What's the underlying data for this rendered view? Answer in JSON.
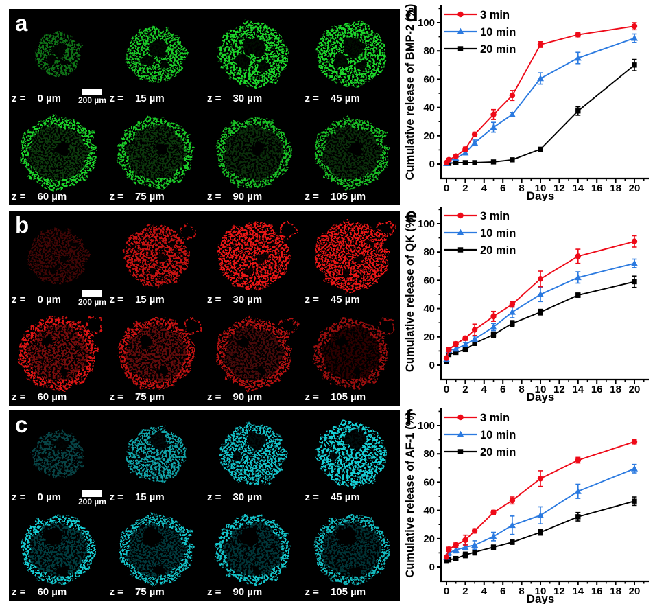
{
  "microscopy": {
    "scalebar_label": "200 µm",
    "z_prefix": "z =",
    "panels": [
      {
        "letter": "a",
        "stain_color": "#1cd42a",
        "z_values": [
          "0 µm",
          "15 µm",
          "30 µm",
          "45 µm",
          "60 µm",
          "75 µm",
          "90 µm",
          "105 µm"
        ]
      },
      {
        "letter": "b",
        "stain_color": "#e81414",
        "z_values": [
          "0 µm",
          "15 µm",
          "30 µm",
          "45 µm",
          "60 µm",
          "75 µm",
          "90 µm",
          "105 µm"
        ]
      },
      {
        "letter": "c",
        "stain_color": "#17ccd2",
        "z_values": [
          "0 µm",
          "15 µm",
          "30 µm",
          "45 µm",
          "60 µm",
          "75 µm",
          "90 µm",
          "105 µm"
        ]
      }
    ]
  },
  "chart_data": [
    {
      "type": "line",
      "panel_letter": "d",
      "title": "",
      "xlabel": "Days",
      "ylabel": "Cumulative release of BMP-2 (%)",
      "x": [
        0,
        0.25,
        1,
        2,
        3,
        5,
        7,
        10,
        14,
        20
      ],
      "xticks": [
        0,
        2,
        4,
        6,
        8,
        10,
        12,
        14,
        16,
        18,
        20
      ],
      "yticks": [
        0,
        20,
        40,
        60,
        80,
        100
      ],
      "xlim": [
        -0.6,
        21.5
      ],
      "ylim": [
        -10,
        112
      ],
      "grid": false,
      "legend_position": "top-left",
      "series": [
        {
          "name": "3 min",
          "color": "#ee0a18",
          "marker": "circle",
          "values": [
            1,
            3,
            5.5,
            10.5,
            21,
            35,
            48.5,
            84.5,
            91.5,
            97.5
          ],
          "errors": [
            1,
            1,
            1,
            1.5,
            1.5,
            3.5,
            3.5,
            2,
            1.5,
            2.5
          ]
        },
        {
          "name": "10 min",
          "color": "#2b7ae0",
          "marker": "triangle",
          "values": [
            0.5,
            2.5,
            4,
            8,
            15,
            26,
            35,
            60.5,
            75,
            89
          ],
          "errors": [
            0.5,
            1,
            1.5,
            1.5,
            2,
            3.5,
            1.5,
            4,
            4,
            3
          ]
        },
        {
          "name": "20 min",
          "color": "#000000",
          "marker": "square",
          "values": [
            0.5,
            0.5,
            1,
            1,
            1,
            1.5,
            3,
            10.5,
            37.5,
            70
          ],
          "errors": [
            0.3,
            0.3,
            0.3,
            0.3,
            0.3,
            0.5,
            0.5,
            1,
            3,
            4
          ]
        }
      ]
    },
    {
      "type": "line",
      "panel_letter": "e",
      "title": "",
      "xlabel": "Days",
      "ylabel": "Cumulative release of QK (%)",
      "x": [
        0,
        0.25,
        1,
        2,
        3,
        5,
        7,
        10,
        14,
        20
      ],
      "xticks": [
        0,
        2,
        4,
        6,
        8,
        10,
        12,
        14,
        16,
        18,
        20
      ],
      "yticks": [
        0,
        20,
        40,
        60,
        80,
        100
      ],
      "xlim": [
        -0.6,
        21.5
      ],
      "ylim": [
        -10,
        112
      ],
      "grid": false,
      "legend_position": "top-left",
      "series": [
        {
          "name": "3 min",
          "color": "#ee0a18",
          "marker": "circle",
          "values": [
            5,
            11,
            15,
            19,
            25,
            34.5,
            43,
            61,
            77,
            87.5
          ],
          "errors": [
            1,
            1.5,
            1.5,
            1.5,
            4,
            3.5,
            2,
            5.5,
            5,
            4
          ]
        },
        {
          "name": "10 min",
          "color": "#2b7ae0",
          "marker": "triangle",
          "values": [
            4,
            10.5,
            11.5,
            14.5,
            18.5,
            27,
            37.5,
            50,
            62,
            72
          ],
          "errors": [
            1,
            1.5,
            1.5,
            1.5,
            2,
            2.5,
            4,
            5,
            4,
            3
          ]
        },
        {
          "name": "20 min",
          "color": "#000000",
          "marker": "square",
          "values": [
            2.5,
            7.5,
            9,
            11,
            15.5,
            21.5,
            29.5,
            37.5,
            49.5,
            59
          ],
          "errors": [
            0.5,
            1,
            1,
            1,
            1.5,
            2,
            2,
            2,
            1.5,
            4
          ]
        }
      ]
    },
    {
      "type": "line",
      "panel_letter": "f",
      "title": "",
      "xlabel": "Days",
      "ylabel": "Cumulative release of AF-1 (%)",
      "x": [
        0,
        0.25,
        1,
        2,
        3,
        5,
        7,
        10,
        14,
        20
      ],
      "xticks": [
        0,
        2,
        4,
        6,
        8,
        10,
        12,
        14,
        16,
        18,
        20
      ],
      "yticks": [
        0,
        20,
        40,
        60,
        80,
        100
      ],
      "xlim": [
        -0.6,
        21.5
      ],
      "ylim": [
        -10,
        112
      ],
      "grid": false,
      "legend_position": "top-left",
      "series": [
        {
          "name": "3 min",
          "color": "#ee0a18",
          "marker": "circle",
          "values": [
            7,
            12.5,
            15.5,
            19,
            25.5,
            38.5,
            47,
            62.5,
            75.5,
            88.5
          ],
          "errors": [
            1,
            1.5,
            1.5,
            3.5,
            1.5,
            1.5,
            2.5,
            5.5,
            2,
            1.5
          ]
        },
        {
          "name": "10 min",
          "color": "#2b7ae0",
          "marker": "triangle",
          "values": [
            7,
            10,
            12,
            14,
            15.5,
            21.5,
            29.5,
            36.5,
            53.5,
            69.5
          ],
          "errors": [
            1,
            2,
            2,
            2,
            3,
            3,
            6.5,
            6,
            5,
            3
          ]
        },
        {
          "name": "20 min",
          "color": "#000000",
          "marker": "square",
          "values": [
            4.5,
            5,
            6,
            8.5,
            10.5,
            14,
            17.5,
            24.5,
            35.5,
            46.5
          ],
          "errors": [
            0.5,
            0.5,
            1,
            2,
            2,
            1.5,
            1.5,
            2,
            3,
            3
          ]
        }
      ]
    }
  ]
}
